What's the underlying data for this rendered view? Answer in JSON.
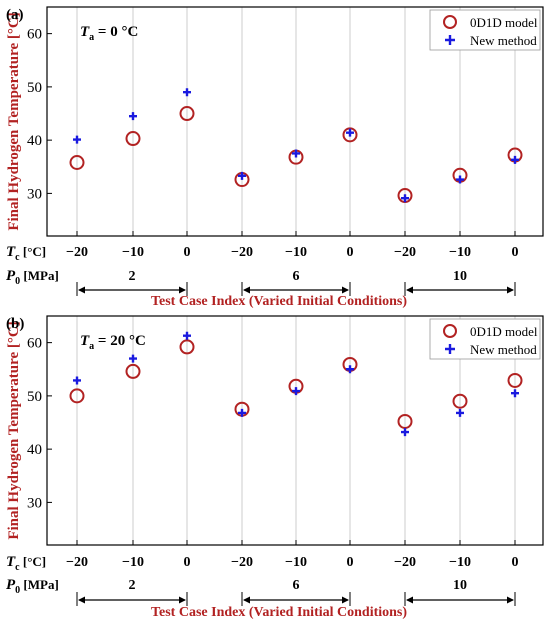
{
  "colors": {
    "model_marker": "#b22222",
    "method_marker": "#1a1adf",
    "ylabel": "#b22222",
    "xlabel": "#b22222",
    "grid": "#cccccc",
    "axis": "#000000"
  },
  "chart_data": [
    {
      "type": "scatter",
      "panel_label": "(a)",
      "annotation": "T_a = 0 °C",
      "annotation_main": "T",
      "annotation_sub": "a",
      "annotation_rest": " = 0 °C",
      "ylabel": "Final Hydrogen Temperature [°C]",
      "xlabel": "Test Case Index (Varied Initial Conditions)",
      "ylim": [
        22,
        65
      ],
      "yticks": [
        "20",
        "30",
        "40",
        "50",
        "60"
      ],
      "tc_label_main": "T",
      "tc_label_sub": "c",
      "tc_label_rest": " [°C]",
      "p0_label_main": "P",
      "p0_label_sub": "0",
      "p0_label_rest": " [MPa]",
      "categories": [
        "−20",
        "−10",
        "0",
        "−20",
        "−10",
        "0",
        "−20",
        "−10",
        "0"
      ],
      "pressure_groups": [
        "2",
        "6",
        "10"
      ],
      "grid": true,
      "legend_position": "top-right",
      "series": [
        {
          "name": "0D1D model",
          "marker": "hollow-circle",
          "values": [
            35.8,
            40.3,
            45.0,
            32.6,
            36.8,
            41.0,
            29.6,
            33.4,
            37.2
          ]
        },
        {
          "name": "New method",
          "marker": "plus",
          "values": [
            40.1,
            44.5,
            49.0,
            33.3,
            37.5,
            41.4,
            29.1,
            32.6,
            36.3
          ]
        }
      ]
    },
    {
      "type": "scatter",
      "panel_label": "(b)",
      "annotation": "T_a = 20 °C",
      "annotation_main": "T",
      "annotation_sub": "a",
      "annotation_rest": " = 20 °C",
      "ylabel": "Final Hydrogen Temperature [°C]",
      "xlabel": "Test Case Index (Varied Initial Conditions)",
      "ylim": [
        22,
        65
      ],
      "yticks": [
        "30",
        "40",
        "50",
        "60"
      ],
      "tc_label_main": "T",
      "tc_label_sub": "c",
      "tc_label_rest": " [°C]",
      "p0_label_main": "P",
      "p0_label_sub": "0",
      "p0_label_rest": " [MPa]",
      "categories": [
        "−20",
        "−10",
        "0",
        "−20",
        "−10",
        "0",
        "−20",
        "−10",
        "0"
      ],
      "pressure_groups": [
        "2",
        "6",
        "10"
      ],
      "grid": true,
      "legend_position": "top-right",
      "series": [
        {
          "name": "0D1D model",
          "marker": "hollow-circle",
          "values": [
            50.0,
            54.6,
            59.2,
            47.5,
            51.8,
            55.9,
            45.2,
            49.0,
            52.9
          ]
        },
        {
          "name": "New method",
          "marker": "plus",
          "values": [
            52.9,
            57.0,
            61.3,
            46.8,
            50.9,
            55.0,
            43.2,
            46.8,
            50.5
          ]
        }
      ]
    }
  ]
}
